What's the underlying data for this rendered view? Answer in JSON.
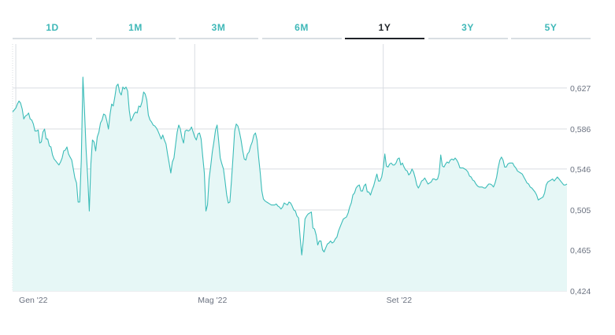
{
  "tabs": [
    {
      "label": "1D",
      "active": false
    },
    {
      "label": "1M",
      "active": false
    },
    {
      "label": "3M",
      "active": false
    },
    {
      "label": "6M",
      "active": false
    },
    {
      "label": "1Y",
      "active": true
    },
    {
      "label": "3Y",
      "active": false
    },
    {
      "label": "5Y",
      "active": false
    }
  ],
  "colors": {
    "accent": "#3fb8b8",
    "line": "#3bbcb8",
    "area": "#e6f7f6",
    "grid": "#d9dde2",
    "active_tab": "#1f2328"
  },
  "chart_data": {
    "type": "area",
    "title": "",
    "xlabel": "",
    "ylabel": "",
    "x_ticks": [
      {
        "label": "Gen '22",
        "x": 0
      },
      {
        "label": "Mag '22",
        "x": 112
      },
      {
        "label": "Set '22",
        "x": 230
      }
    ],
    "y_ticks": [
      "0,424",
      "0,465",
      "0,505",
      "0,546",
      "0,586",
      "0,627"
    ],
    "y_tick_values": [
      0.424,
      0.465,
      0.505,
      0.546,
      0.586,
      0.627
    ],
    "x_range": [
      -2,
      345
    ],
    "ylim": [
      0.424,
      0.671
    ],
    "grid": true,
    "legend": "none",
    "x": [
      -2,
      0,
      1,
      2,
      3,
      4,
      5,
      6,
      7,
      8,
      9,
      10,
      11,
      12,
      13,
      14,
      15,
      16,
      17,
      18,
      19,
      20,
      21,
      22,
      23,
      24,
      25,
      26,
      27,
      28,
      29,
      30,
      31,
      32,
      33,
      34,
      35,
      36,
      37,
      38,
      39,
      40,
      41,
      42,
      43,
      44,
      45,
      46,
      47,
      48,
      49,
      50,
      51,
      52,
      53,
      54,
      55,
      56,
      57,
      58,
      59,
      60,
      61,
      62,
      63,
      64,
      65,
      66,
      67,
      68,
      69,
      70,
      71,
      72,
      73,
      74,
      75,
      76,
      77,
      78,
      79,
      80,
      81,
      82,
      83,
      84,
      85,
      86,
      87,
      88,
      89,
      90,
      91,
      92,
      93,
      94,
      95,
      96,
      97,
      98,
      99,
      100,
      101,
      102,
      103,
      104,
      105,
      106,
      107,
      108,
      109,
      110,
      111,
      112,
      113,
      114,
      115,
      116,
      117,
      118,
      119,
      120,
      121,
      122,
      123,
      124,
      125,
      126,
      127,
      128,
      129,
      130,
      131,
      132,
      133,
      134,
      135,
      136,
      137,
      138,
      139,
      140,
      141,
      142,
      143,
      144,
      145,
      146,
      147,
      148,
      149,
      150,
      151,
      152,
      153,
      154,
      155,
      156,
      157,
      158,
      159,
      160,
      161,
      162,
      163,
      164,
      165,
      166,
      167,
      168,
      169,
      170,
      171,
      172,
      173,
      174,
      175,
      176,
      177,
      178,
      179,
      180,
      181,
      182,
      183,
      184,
      185,
      186,
      187,
      188,
      189,
      190,
      191,
      192,
      193,
      194,
      195,
      196,
      197,
      198,
      199,
      200,
      201,
      202,
      203,
      204,
      205,
      206,
      207,
      208,
      209,
      210,
      211,
      212,
      213,
      214,
      215,
      216,
      217,
      218,
      219,
      220,
      221,
      222,
      223,
      224,
      225,
      226,
      227,
      228,
      229,
      230,
      231,
      232,
      233,
      234,
      235,
      236,
      237,
      238,
      239,
      240,
      241,
      242,
      243,
      244,
      245,
      246,
      247,
      248,
      249,
      250,
      251,
      252,
      253,
      254,
      255,
      256,
      257,
      258,
      259,
      260,
      261,
      262,
      263,
      264,
      265,
      266,
      267,
      268,
      269,
      270,
      271,
      272,
      273,
      274,
      275,
      276,
      277,
      278,
      279,
      280,
      281,
      282,
      283,
      284,
      285,
      286,
      287,
      288,
      289,
      290,
      291,
      292,
      293,
      294,
      295,
      296,
      297,
      298,
      299,
      300,
      301,
      302,
      303,
      304,
      305,
      306,
      307,
      308,
      309,
      310,
      311,
      312,
      313,
      314,
      315,
      316,
      317,
      318,
      319,
      320,
      321,
      322,
      323,
      324,
      325,
      326,
      327,
      328,
      329,
      330,
      331,
      332,
      333,
      334,
      335,
      336,
      337,
      338,
      339,
      340,
      341,
      342,
      343,
      344,
      345
    ],
    "values": [
      0.603,
      0.607,
      0.611,
      0.614,
      0.612,
      0.606,
      0.596,
      0.599,
      0.6,
      0.602,
      0.596,
      0.595,
      0.591,
      0.584,
      0.584,
      0.585,
      0.572,
      0.573,
      0.583,
      0.586,
      0.576,
      0.576,
      0.569,
      0.568,
      0.56,
      0.556,
      0.554,
      0.552,
      0.55,
      0.553,
      0.557,
      0.564,
      0.565,
      0.568,
      0.561,
      0.558,
      0.555,
      0.546,
      0.537,
      0.532,
      0.513,
      0.513,
      0.554,
      0.638,
      0.605,
      0.566,
      0.538,
      0.504,
      0.551,
      0.575,
      0.573,
      0.564,
      0.578,
      0.583,
      0.592,
      0.595,
      0.601,
      0.6,
      0.594,
      0.586,
      0.601,
      0.611,
      0.609,
      0.618,
      0.629,
      0.631,
      0.623,
      0.62,
      0.628,
      0.626,
      0.628,
      0.624,
      0.605,
      0.594,
      0.597,
      0.601,
      0.603,
      0.602,
      0.609,
      0.608,
      0.613,
      0.623,
      0.621,
      0.615,
      0.6,
      0.595,
      0.593,
      0.59,
      0.589,
      0.587,
      0.584,
      0.58,
      0.576,
      0.58,
      0.575,
      0.571,
      0.561,
      0.552,
      0.542,
      0.553,
      0.557,
      0.57,
      0.583,
      0.59,
      0.586,
      0.577,
      0.572,
      0.584,
      0.585,
      0.584,
      0.585,
      0.588,
      0.583,
      0.578,
      0.575,
      0.581,
      0.582,
      0.576,
      0.559,
      0.542,
      0.504,
      0.51,
      0.536,
      0.549,
      0.563,
      0.573,
      0.585,
      0.59,
      0.574,
      0.557,
      0.551,
      0.546,
      0.534,
      0.52,
      0.512,
      0.513,
      0.534,
      0.559,
      0.584,
      0.591,
      0.589,
      0.583,
      0.575,
      0.565,
      0.556,
      0.555,
      0.561,
      0.563,
      0.569,
      0.573,
      0.58,
      0.582,
      0.575,
      0.558,
      0.542,
      0.524,
      0.516,
      0.514,
      0.513,
      0.512,
      0.511,
      0.51,
      0.51,
      0.51,
      0.511,
      0.509,
      0.508,
      0.506,
      0.508,
      0.512,
      0.511,
      0.51,
      0.513,
      0.512,
      0.509,
      0.505,
      0.504,
      0.499,
      0.497,
      0.477,
      0.46,
      0.475,
      0.496,
      0.499,
      0.501,
      0.502,
      0.503,
      0.487,
      0.486,
      0.48,
      0.47,
      0.474,
      0.474,
      0.465,
      0.463,
      0.467,
      0.471,
      0.472,
      0.474,
      0.472,
      0.473,
      0.476,
      0.478,
      0.484,
      0.488,
      0.492,
      0.496,
      0.497,
      0.498,
      0.502,
      0.508,
      0.512,
      0.52,
      0.522,
      0.527,
      0.529,
      0.53,
      0.524,
      0.524,
      0.529,
      0.531,
      0.523,
      0.523,
      0.52,
      0.525,
      0.529,
      0.535,
      0.541,
      0.534,
      0.534,
      0.538,
      0.547,
      0.561,
      0.549,
      0.548,
      0.551,
      0.552,
      0.55,
      0.55,
      0.552,
      0.556,
      0.557,
      0.55,
      0.552,
      0.548,
      0.545,
      0.544,
      0.54,
      0.542,
      0.546,
      0.543,
      0.537,
      0.53,
      0.527,
      0.53,
      0.534,
      0.535,
      0.537,
      0.534,
      0.531,
      0.532,
      0.533,
      0.536,
      0.536,
      0.535,
      0.536,
      0.542,
      0.56,
      0.549,
      0.548,
      0.551,
      0.553,
      0.552,
      0.555,
      0.556,
      0.555,
      0.557,
      0.555,
      0.552,
      0.547,
      0.547,
      0.547,
      0.546,
      0.545,
      0.543,
      0.539,
      0.538,
      0.535,
      0.534,
      0.531,
      0.529,
      0.528,
      0.528,
      0.528,
      0.527,
      0.527,
      0.529,
      0.531,
      0.531,
      0.53,
      0.528,
      0.532,
      0.538,
      0.548,
      0.555,
      0.558,
      0.555,
      0.548,
      0.548,
      0.551,
      0.552,
      0.552,
      0.552,
      0.549,
      0.547,
      0.544,
      0.543,
      0.542,
      0.541,
      0.538,
      0.535,
      0.532,
      0.531,
      0.528,
      0.527,
      0.525,
      0.523,
      0.52,
      0.515,
      0.516,
      0.517,
      0.518,
      0.522,
      0.53,
      0.533,
      0.534,
      0.535,
      0.536,
      0.534,
      0.536,
      0.538,
      0.536,
      0.534,
      0.532,
      0.53,
      0.53,
      0.531
    ]
  }
}
